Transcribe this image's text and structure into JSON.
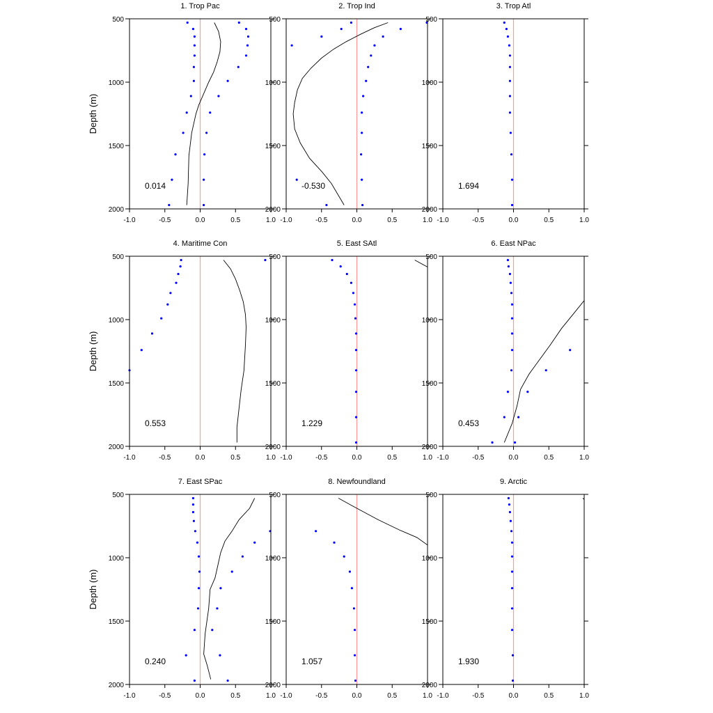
{
  "figure": {
    "x_ticks": [
      "-1.0",
      "-0.5",
      "0.0",
      "0.5",
      "1.0"
    ],
    "y_ticks": [
      "500",
      "1000",
      "1500",
      "2000"
    ],
    "ylabel": "Depth (m)"
  },
  "colors": {
    "zero_line": "#ff9999",
    "dots": "#0000ff",
    "curve": "#000000",
    "axes": "#000000"
  },
  "chart_data": [
    {
      "type": "scatter",
      "title": "1. Trop Pac",
      "annotation": "0.014",
      "xlim": [
        -1,
        1
      ],
      "ylim": [
        2000,
        500
      ],
      "ylabel": "Depth (m)",
      "series": [
        {
          "points": [
            [
              -0.18,
              530
            ],
            [
              -0.1,
              580
            ],
            [
              -0.08,
              640
            ],
            [
              -0.08,
              710
            ],
            [
              -0.08,
              790
            ],
            [
              -0.09,
              880
            ],
            [
              -0.09,
              990
            ],
            [
              -0.13,
              1110
            ],
            [
              -0.19,
              1240
            ],
            [
              -0.24,
              1400
            ],
            [
              -0.35,
              1570
            ],
            [
              -0.4,
              1770
            ],
            [
              -0.44,
              1970
            ]
          ]
        },
        {
          "points": [
            [
              0.55,
              530
            ],
            [
              0.65,
              580
            ],
            [
              0.68,
              640
            ],
            [
              0.67,
              710
            ],
            [
              0.65,
              790
            ],
            [
              0.54,
              880
            ],
            [
              0.39,
              990
            ],
            [
              0.26,
              1110
            ],
            [
              0.14,
              1240
            ],
            [
              0.09,
              1400
            ],
            [
              0.06,
              1570
            ],
            [
              0.05,
              1770
            ],
            [
              0.05,
              1970
            ]
          ]
        },
        {
          "points": [
            [
              0.2,
              530
            ],
            [
              0.26,
              600
            ],
            [
              0.29,
              680
            ],
            [
              0.28,
              760
            ],
            [
              0.24,
              840
            ],
            [
              0.19,
              920
            ],
            [
              0.12,
              1000
            ],
            [
              0.05,
              1090
            ],
            [
              -0.02,
              1180
            ],
            [
              -0.06,
              1250
            ],
            [
              -0.12,
              1400
            ],
            [
              -0.16,
              1580
            ],
            [
              -0.17,
              1800
            ],
            [
              -0.19,
              1970
            ]
          ]
        }
      ]
    },
    {
      "type": "scatter",
      "title": "2. Trop Ind",
      "annotation": "-0.530",
      "xlim": [
        -1,
        1
      ],
      "ylim": [
        2000,
        500
      ],
      "ylabel": "",
      "series": [
        {
          "points": [
            [
              -0.08,
              530
            ],
            [
              -0.22,
              580
            ],
            [
              -0.5,
              640
            ],
            [
              -0.92,
              710
            ],
            [
              -0.85,
              1770
            ],
            [
              -0.43,
              1970
            ]
          ]
        },
        {
          "points": [
            [
              0.99,
              530
            ],
            [
              0.62,
              580
            ],
            [
              0.37,
              640
            ],
            [
              0.25,
              710
            ],
            [
              0.2,
              790
            ],
            [
              0.16,
              880
            ],
            [
              0.13,
              990
            ],
            [
              0.09,
              1110
            ],
            [
              0.07,
              1240
            ],
            [
              0.07,
              1400
            ],
            [
              0.06,
              1570
            ],
            [
              0.07,
              1770
            ],
            [
              0.08,
              1970
            ]
          ]
        },
        {
          "points": [
            [
              0.44,
              530
            ],
            [
              0.25,
              570
            ],
            [
              0.06,
              620
            ],
            [
              -0.15,
              680
            ],
            [
              -0.33,
              740
            ],
            [
              -0.5,
              810
            ],
            [
              -0.65,
              890
            ],
            [
              -0.77,
              970
            ],
            [
              -0.84,
              1060
            ],
            [
              -0.88,
              1160
            ],
            [
              -0.9,
              1250
            ],
            [
              -0.88,
              1370
            ],
            [
              -0.8,
              1480
            ],
            [
              -0.67,
              1600
            ],
            [
              -0.49,
              1710
            ],
            [
              -0.36,
              1800
            ],
            [
              -0.18,
              1970
            ]
          ]
        }
      ]
    },
    {
      "type": "scatter",
      "title": "3. Trop Atl",
      "annotation": "1.694",
      "xlim": [
        -1,
        1
      ],
      "ylim": [
        2000,
        500
      ],
      "ylabel": "",
      "series": [
        {
          "points": [
            [
              -0.13,
              530
            ],
            [
              -0.1,
              580
            ],
            [
              -0.08,
              640
            ],
            [
              -0.06,
              710
            ],
            [
              -0.05,
              790
            ],
            [
              -0.05,
              880
            ],
            [
              -0.05,
              990
            ],
            [
              -0.05,
              1110
            ],
            [
              -0.05,
              1240
            ],
            [
              -0.04,
              1400
            ],
            [
              -0.03,
              1570
            ],
            [
              -0.02,
              1770
            ],
            [
              -0.02,
              1970
            ]
          ]
        }
      ]
    },
    {
      "type": "scatter",
      "title": "4. Maritime Con",
      "annotation": "0.553",
      "xlim": [
        -1,
        1
      ],
      "ylim": [
        2000,
        500
      ],
      "ylabel": "Depth (m)",
      "series": [
        {
          "points": [
            [
              -0.27,
              530
            ],
            [
              -0.28,
              580
            ],
            [
              -0.31,
              640
            ],
            [
              -0.34,
              710
            ],
            [
              -0.42,
              790
            ],
            [
              -0.46,
              880
            ],
            [
              -0.55,
              990
            ],
            [
              -0.68,
              1110
            ],
            [
              -0.83,
              1240
            ],
            [
              -1.0,
              1400
            ]
          ]
        },
        {
          "points": [
            [
              0.92,
              530
            ]
          ]
        },
        {
          "points": [
            [
              0.33,
              530
            ],
            [
              0.43,
              600
            ],
            [
              0.5,
              680
            ],
            [
              0.56,
              770
            ],
            [
              0.61,
              860
            ],
            [
              0.64,
              960
            ],
            [
              0.65,
              1060
            ],
            [
              0.64,
              1200
            ],
            [
              0.62,
              1400
            ],
            [
              0.58,
              1550
            ],
            [
              0.55,
              1700
            ],
            [
              0.52,
              1850
            ],
            [
              0.52,
              1970
            ]
          ]
        }
      ]
    },
    {
      "type": "scatter",
      "title": "5. East SAtl",
      "annotation": "1.229",
      "xlim": [
        -1,
        1
      ],
      "ylim": [
        2000,
        500
      ],
      "ylabel": "",
      "series": [
        {
          "points": [
            [
              -0.35,
              530
            ],
            [
              -0.23,
              580
            ],
            [
              -0.14,
              640
            ],
            [
              -0.08,
              710
            ],
            [
              -0.05,
              790
            ],
            [
              -0.03,
              880
            ],
            [
              -0.02,
              990
            ],
            [
              -0.01,
              1110
            ],
            [
              -0.01,
              1240
            ],
            [
              -0.01,
              1400
            ],
            [
              -0.01,
              1570
            ],
            [
              -0.01,
              1770
            ],
            [
              -0.01,
              1970
            ]
          ]
        },
        {
          "points": [
            [
              0.82,
              530
            ],
            [
              1.0,
              585
            ]
          ]
        }
      ]
    },
    {
      "type": "scatter",
      "title": "6. East NPac",
      "annotation": "0.453",
      "xlim": [
        -1,
        1
      ],
      "ylim": [
        2000,
        500
      ],
      "ylabel": "",
      "series": [
        {
          "points": [
            [
              -0.08,
              530
            ],
            [
              -0.07,
              580
            ],
            [
              -0.05,
              640
            ],
            [
              -0.04,
              710
            ],
            [
              -0.03,
              790
            ],
            [
              -0.02,
              880
            ],
            [
              -0.02,
              990
            ],
            [
              -0.02,
              1110
            ],
            [
              -0.02,
              1240
            ],
            [
              -0.03,
              1400
            ],
            [
              -0.08,
              1570
            ],
            [
              -0.13,
              1770
            ],
            [
              -0.3,
              1970
            ]
          ]
        },
        {
          "points": [
            [
              0.8,
              1240
            ],
            [
              0.46,
              1400
            ],
            [
              0.2,
              1570
            ],
            [
              0.07,
              1770
            ],
            [
              0.02,
              1970
            ]
          ]
        },
        {
          "points": [
            [
              1.0,
              850
            ],
            [
              0.84,
              960
            ],
            [
              0.68,
              1070
            ],
            [
              0.52,
              1200
            ],
            [
              0.35,
              1330
            ],
            [
              0.22,
              1430
            ],
            [
              0.1,
              1550
            ],
            [
              0.05,
              1680
            ],
            [
              -0.02,
              1820
            ],
            [
              -0.13,
              1970
            ]
          ]
        }
      ]
    },
    {
      "type": "scatter",
      "title": "7. East SPac",
      "annotation": "0.240",
      "xlim": [
        -1,
        1
      ],
      "ylim": [
        2000,
        500
      ],
      "ylabel": "Depth (m)",
      "series": [
        {
          "points": [
            [
              -0.1,
              530
            ],
            [
              -0.1,
              580
            ],
            [
              -0.1,
              640
            ],
            [
              -0.09,
              710
            ],
            [
              -0.07,
              790
            ],
            [
              -0.04,
              880
            ],
            [
              -0.02,
              990
            ],
            [
              -0.01,
              1110
            ],
            [
              -0.02,
              1240
            ],
            [
              -0.03,
              1400
            ],
            [
              -0.08,
              1570
            ],
            [
              -0.2,
              1770
            ],
            [
              -0.08,
              1970
            ]
          ]
        },
        {
          "points": [
            [
              0.99,
              790
            ],
            [
              0.77,
              880
            ],
            [
              0.6,
              990
            ],
            [
              0.45,
              1110
            ],
            [
              0.29,
              1240
            ],
            [
              0.24,
              1400
            ],
            [
              0.17,
              1570
            ],
            [
              0.28,
              1770
            ],
            [
              0.39,
              1970
            ]
          ]
        },
        {
          "points": [
            [
              0.77,
              530
            ],
            [
              0.7,
              610
            ],
            [
              0.55,
              700
            ],
            [
              0.45,
              790
            ],
            [
              0.35,
              870
            ],
            [
              0.29,
              960
            ],
            [
              0.25,
              1060
            ],
            [
              0.21,
              1160
            ],
            [
              0.14,
              1250
            ],
            [
              0.12,
              1400
            ],
            [
              0.07,
              1600
            ],
            [
              0.05,
              1760
            ],
            [
              0.1,
              1850
            ],
            [
              0.15,
              1960
            ]
          ]
        }
      ]
    },
    {
      "type": "scatter",
      "title": "8. Newfoundland",
      "annotation": "1.057",
      "xlim": [
        -1,
        1
      ],
      "ylim": [
        2000,
        500
      ],
      "ylabel": "",
      "series": [
        {
          "points": [
            [
              -0.58,
              790
            ],
            [
              -0.32,
              880
            ],
            [
              -0.18,
              990
            ],
            [
              -0.1,
              1110
            ],
            [
              -0.07,
              1240
            ],
            [
              -0.04,
              1400
            ],
            [
              -0.03,
              1570
            ],
            [
              -0.03,
              1770
            ],
            [
              -0.02,
              1970
            ]
          ]
        },
        {
          "points": [
            [
              -0.26,
              530
            ],
            [
              0.0,
              610
            ],
            [
              0.3,
              700
            ],
            [
              0.6,
              780
            ],
            [
              0.85,
              840
            ],
            [
              1.0,
              900
            ]
          ]
        }
      ]
    },
    {
      "type": "scatter",
      "title": "9. Arctic",
      "annotation": "1.930",
      "xlim": [
        -1,
        1
      ],
      "ylim": [
        2000,
        500
      ],
      "ylabel": "",
      "series": [
        {
          "points": [
            [
              -0.07,
              530
            ],
            [
              -0.06,
              580
            ],
            [
              -0.05,
              640
            ],
            [
              -0.04,
              710
            ],
            [
              -0.03,
              790
            ],
            [
              -0.02,
              880
            ],
            [
              -0.02,
              990
            ],
            [
              -0.02,
              1110
            ],
            [
              -0.02,
              1240
            ],
            [
              -0.02,
              1400
            ],
            [
              -0.02,
              1570
            ],
            [
              -0.01,
              1770
            ],
            [
              -0.01,
              1970
            ]
          ]
        },
        {
          "points": [
            [
              0.98,
              530
            ],
            [
              1.0,
              540
            ]
          ]
        }
      ]
    }
  ]
}
